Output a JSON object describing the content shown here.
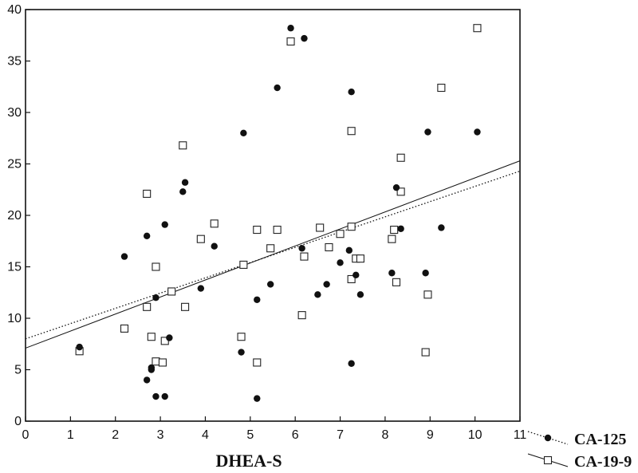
{
  "chart_data": {
    "type": "scatter",
    "xlabel": "DHEA-S",
    "ylabel": "",
    "xlim": [
      0,
      11
    ],
    "ylim": [
      0,
      40
    ],
    "x_ticks": [
      0,
      1,
      2,
      3,
      4,
      5,
      6,
      7,
      8,
      9,
      10,
      11
    ],
    "y_ticks": [
      0,
      5,
      10,
      15,
      20,
      25,
      30,
      35,
      40
    ],
    "grid": false,
    "legend_position": "bottom-right, outside plot",
    "series": [
      {
        "name": "CA-125",
        "marker": "filled-circle",
        "trendline_style": "dotted",
        "trendline": [
          [
            0,
            8.0
          ],
          [
            11,
            24.3
          ]
        ],
        "points": [
          [
            1.2,
            7.2
          ],
          [
            2.2,
            16.0
          ],
          [
            2.7,
            18.0
          ],
          [
            2.7,
            4.0
          ],
          [
            2.8,
            5.0
          ],
          [
            2.8,
            5.2
          ],
          [
            2.9,
            12.0
          ],
          [
            2.9,
            2.4
          ],
          [
            3.1,
            19.1
          ],
          [
            3.1,
            2.4
          ],
          [
            3.2,
            8.1
          ],
          [
            3.5,
            22.3
          ],
          [
            3.55,
            23.2
          ],
          [
            3.9,
            12.9
          ],
          [
            4.2,
            17.0
          ],
          [
            4.8,
            6.7
          ],
          [
            4.85,
            28.0
          ],
          [
            5.15,
            11.8
          ],
          [
            5.15,
            2.2
          ],
          [
            5.45,
            13.3
          ],
          [
            5.6,
            32.4
          ],
          [
            5.9,
            38.2
          ],
          [
            6.15,
            16.8
          ],
          [
            6.2,
            37.2
          ],
          [
            6.5,
            12.3
          ],
          [
            6.7,
            13.3
          ],
          [
            7.0,
            15.4
          ],
          [
            7.2,
            16.6
          ],
          [
            7.25,
            32.0
          ],
          [
            7.25,
            5.6
          ],
          [
            7.35,
            14.2
          ],
          [
            7.45,
            12.3
          ],
          [
            8.15,
            14.4
          ],
          [
            8.25,
            22.7
          ],
          [
            8.35,
            18.7
          ],
          [
            8.9,
            14.4
          ],
          [
            8.95,
            28.1
          ],
          [
            9.25,
            18.8
          ],
          [
            10.05,
            28.1
          ]
        ]
      },
      {
        "name": "CA-19-9",
        "marker": "open-square",
        "trendline_style": "solid",
        "trendline": [
          [
            0,
            7.1
          ],
          [
            11,
            25.3
          ]
        ],
        "points": [
          [
            1.2,
            6.8
          ],
          [
            2.2,
            9.0
          ],
          [
            2.7,
            22.1
          ],
          [
            2.7,
            11.1
          ],
          [
            2.8,
            8.2
          ],
          [
            2.9,
            15.0
          ],
          [
            2.9,
            5.8
          ],
          [
            3.05,
            5.7
          ],
          [
            3.1,
            7.8
          ],
          [
            3.25,
            12.6
          ],
          [
            3.5,
            26.8
          ],
          [
            3.55,
            11.1
          ],
          [
            3.9,
            17.7
          ],
          [
            4.2,
            19.2
          ],
          [
            4.8,
            8.2
          ],
          [
            4.85,
            15.2
          ],
          [
            5.15,
            18.6
          ],
          [
            5.15,
            5.7
          ],
          [
            5.45,
            16.8
          ],
          [
            5.6,
            18.6
          ],
          [
            5.9,
            36.9
          ],
          [
            6.15,
            10.3
          ],
          [
            6.2,
            16.0
          ],
          [
            6.55,
            18.8
          ],
          [
            6.75,
            16.9
          ],
          [
            7.0,
            18.2
          ],
          [
            7.25,
            28.2
          ],
          [
            7.25,
            18.9
          ],
          [
            7.25,
            13.8
          ],
          [
            7.35,
            15.8
          ],
          [
            7.45,
            15.8
          ],
          [
            8.15,
            17.7
          ],
          [
            8.2,
            18.6
          ],
          [
            8.25,
            13.5
          ],
          [
            8.35,
            25.6
          ],
          [
            8.35,
            22.3
          ],
          [
            8.9,
            6.7
          ],
          [
            8.95,
            12.3
          ],
          [
            9.25,
            32.4
          ],
          [
            10.05,
            38.2
          ]
        ]
      }
    ]
  }
}
